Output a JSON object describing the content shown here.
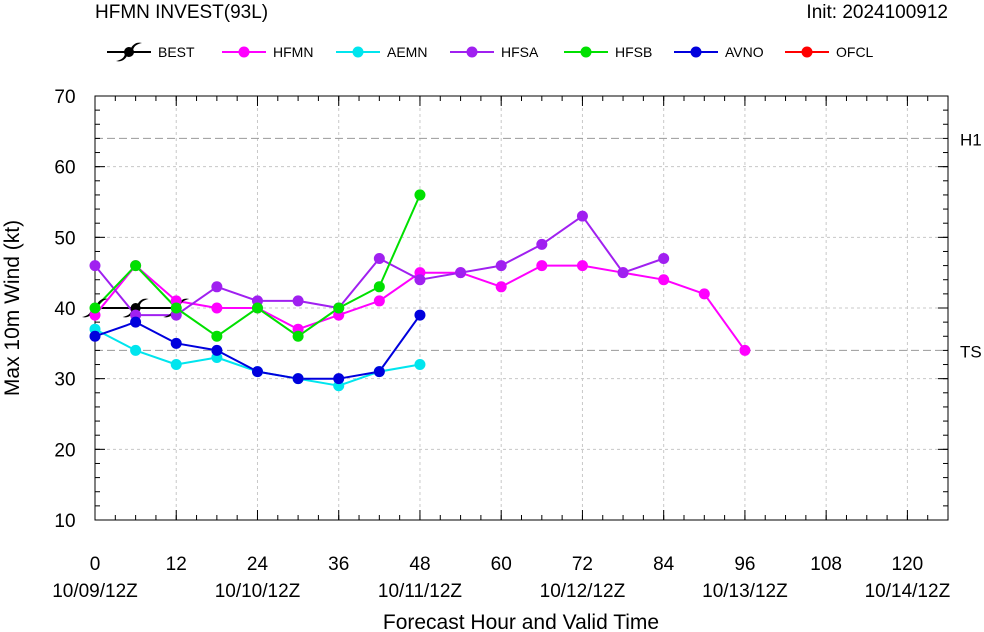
{
  "chart_data": {
    "type": "line",
    "title": "HFMN INVEST(93L)",
    "init_label": "Init: 2024100912",
    "xlabel": "Forecast Hour and Valid Time",
    "ylabel": "Max 10m Wind (kt)",
    "xlim": [
      0,
      126
    ],
    "ylim": [
      10,
      70
    ],
    "x_ticks": [
      0,
      12,
      24,
      36,
      48,
      60,
      72,
      84,
      96,
      108,
      120
    ],
    "x_tick_labels": [
      "0",
      "12",
      "24",
      "36",
      "48",
      "60",
      "72",
      "84",
      "96",
      "108",
      "120"
    ],
    "date_ticks": [
      {
        "x": 0,
        "label": "10/09/12Z"
      },
      {
        "x": 24,
        "label": "10/10/12Z"
      },
      {
        "x": 48,
        "label": "10/11/12Z"
      },
      {
        "x": 72,
        "label": "10/12/12Z"
      },
      {
        "x": 96,
        "label": "10/13/12Z"
      },
      {
        "x": 120,
        "label": "10/14/12Z"
      }
    ],
    "y_ticks": [
      10,
      20,
      30,
      40,
      50,
      60,
      70
    ],
    "y_tick_labels": [
      "10",
      "20",
      "30",
      "40",
      "50",
      "60",
      "70"
    ],
    "grid": true,
    "reference_lines": [
      {
        "y": 64,
        "label": "H1"
      },
      {
        "y": 34,
        "label": "TS"
      }
    ],
    "legend_position": "top",
    "series": [
      {
        "name": "BEST",
        "color": "#000000",
        "marker": "hurricane-symbol",
        "x": [
          0,
          6,
          12
        ],
        "values": [
          40,
          40,
          40
        ]
      },
      {
        "name": "HFMN",
        "color": "#ff00ff",
        "marker": "circle",
        "x": [
          0,
          6,
          12,
          18,
          24,
          30,
          36,
          42,
          48,
          54,
          60,
          66,
          72,
          78,
          84,
          90,
          96
        ],
        "values": [
          39,
          46,
          41,
          40,
          40,
          37,
          39,
          41,
          45,
          45,
          43,
          46,
          46,
          45,
          44,
          42,
          34
        ]
      },
      {
        "name": "AEMN",
        "color": "#00e5ee",
        "marker": "circle",
        "x": [
          0,
          6,
          12,
          18,
          24,
          30,
          36,
          42,
          48
        ],
        "values": [
          37,
          34,
          32,
          33,
          31,
          30,
          29,
          31,
          32
        ]
      },
      {
        "name": "HFSA",
        "color": "#a020f0",
        "marker": "circle",
        "x": [
          0,
          6,
          12,
          18,
          24,
          30,
          36,
          42,
          48,
          54,
          60,
          66,
          72,
          78,
          84
        ],
        "values": [
          46,
          39,
          39,
          43,
          41,
          41,
          40,
          47,
          44,
          45,
          46,
          49,
          53,
          45,
          47
        ]
      },
      {
        "name": "HFSB",
        "color": "#00e000",
        "marker": "circle",
        "x": [
          0,
          6,
          12,
          18,
          24,
          30,
          36,
          42,
          48
        ],
        "values": [
          40,
          46,
          40,
          36,
          40,
          36,
          40,
          43,
          56
        ]
      },
      {
        "name": "AVNO",
        "color": "#0000dd",
        "marker": "circle",
        "x": [
          0,
          6,
          12,
          18,
          24,
          30,
          36,
          42,
          48
        ],
        "values": [
          36,
          38,
          35,
          34,
          31,
          30,
          30,
          31,
          39
        ]
      },
      {
        "name": "OFCL",
        "color": "#ff0000",
        "marker": "circle",
        "x": [],
        "values": []
      }
    ]
  }
}
